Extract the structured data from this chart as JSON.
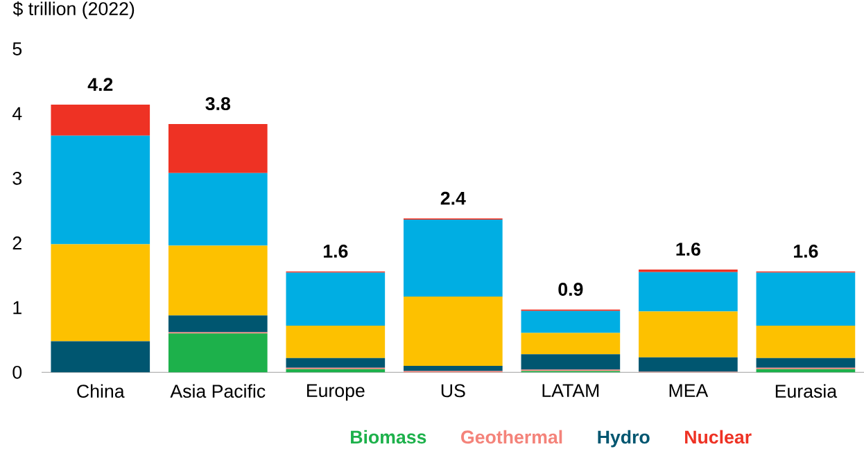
{
  "chart_data": {
    "type": "bar",
    "stacked": true,
    "ylabel": "$ trillion (2022)",
    "categories": [
      "China",
      "Asia Pacific",
      "Europe",
      "US",
      "LATAM",
      "MEA",
      "Eurasia"
    ],
    "series": [
      {
        "name": "Biomass",
        "color": "#1db14b",
        "values": [
          0,
          0.6,
          0.05,
          0,
          0.02,
          0,
          0.05
        ]
      },
      {
        "name": "Geothermal",
        "color": "#f4837a",
        "values": [
          0,
          0.02,
          0.02,
          0.02,
          0.02,
          0.01,
          0.02
        ]
      },
      {
        "name": "Hydro",
        "color": "#005670",
        "values": [
          0.48,
          0.26,
          0.15,
          0.08,
          0.24,
          0.22,
          0.15
        ]
      },
      {
        "color": "#fdc100",
        "values": [
          1.5,
          1.08,
          0.5,
          1.07,
          0.33,
          0.71,
          0.5
        ]
      },
      {
        "color": "#00aee3",
        "values": [
          1.68,
          1.12,
          0.82,
          1.19,
          0.34,
          0.61,
          0.82
        ]
      },
      {
        "name": "Nuclear",
        "color": "#ee3224",
        "values": [
          0.48,
          0.76,
          0.02,
          0.02,
          0.02,
          0.04,
          0.02
        ]
      }
    ],
    "totals": [
      "4.2",
      "3.8",
      "1.6",
      "2.4",
      "0.9",
      "1.6",
      "1.6"
    ],
    "ylim": [
      0,
      5
    ],
    "yticks": [
      0,
      1,
      2,
      3,
      4,
      5
    ],
    "legend": "bottom"
  }
}
